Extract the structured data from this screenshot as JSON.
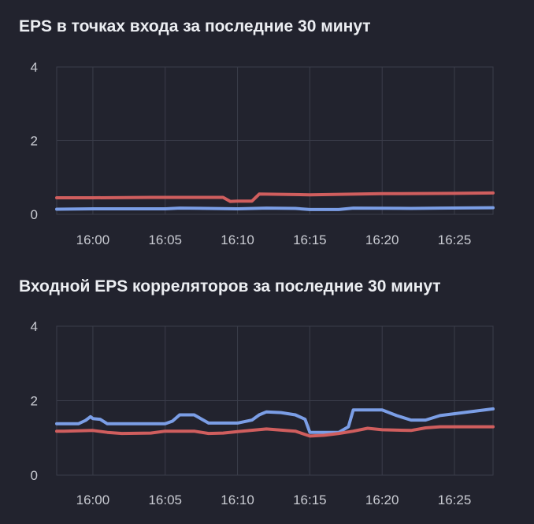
{
  "charts": [
    {
      "title": "EPS в точках входа за последние 30 минут",
      "chart_data": {
        "type": "line",
        "title": "EPS в точках входа за последние 30 минут",
        "xlabel": "",
        "ylabel": "",
        "x_tick_labels": [
          "16:00",
          "16:05",
          "16:10",
          "16:15",
          "16:20",
          "16:25"
        ],
        "y_ticks": [
          0,
          2,
          4
        ],
        "ylim": [
          0,
          4
        ],
        "xlim": [
          "15:57:30",
          "16:27:40"
        ],
        "grid": true,
        "series": [
          {
            "color": "#d05e5e",
            "x": [
              "15:57:30",
              "16:00",
              "16:04",
              "16:08",
              "16:09",
              "16:09:30",
              "16:10",
              "16:11",
              "16:11:30",
              "16:15",
              "16:20",
              "16:25",
              "16:27:40"
            ],
            "values": [
              0.45,
              0.45,
              0.46,
              0.46,
              0.46,
              0.35,
              0.36,
              0.36,
              0.55,
              0.53,
              0.56,
              0.57,
              0.58
            ]
          },
          {
            "color": "#7b9ee6",
            "x": [
              "15:57:30",
              "16:00",
              "16:05",
              "16:06",
              "16:10",
              "16:12",
              "16:14",
              "16:15",
              "16:17",
              "16:18",
              "16:22",
              "16:24",
              "16:27:40"
            ],
            "values": [
              0.14,
              0.15,
              0.15,
              0.17,
              0.15,
              0.17,
              0.16,
              0.13,
              0.13,
              0.17,
              0.16,
              0.17,
              0.18
            ]
          }
        ]
      }
    },
    {
      "title": "Входной EPS корреляторов за последние 30 минут",
      "chart_data": {
        "type": "line",
        "title": "Входной EPS корреляторов за последние 30 минут",
        "xlabel": "",
        "ylabel": "",
        "x_tick_labels": [
          "16:00",
          "16:05",
          "16:10",
          "16:15",
          "16:20",
          "16:25"
        ],
        "y_ticks": [
          0,
          2,
          4
        ],
        "ylim": [
          0,
          4
        ],
        "xlim": [
          "15:57:30",
          "16:27:40"
        ],
        "grid": true,
        "series": [
          {
            "color": "#7b9ee6",
            "x": [
              "15:57:30",
              "15:59",
              "15:59:30",
              "15:59:50",
              "16:00",
              "16:00:30",
              "16:01",
              "16:05",
              "16:05:30",
              "16:06",
              "16:07",
              "16:08",
              "16:10",
              "16:11",
              "16:11:30",
              "16:12",
              "16:13",
              "16:14",
              "16:14:40",
              "16:15",
              "16:16",
              "16:17",
              "16:17:40",
              "16:18",
              "16:20",
              "16:21",
              "16:22",
              "16:23",
              "16:24",
              "16:27:40"
            ],
            "values": [
              1.38,
              1.38,
              1.47,
              1.57,
              1.52,
              1.5,
              1.38,
              1.38,
              1.45,
              1.62,
              1.62,
              1.4,
              1.4,
              1.48,
              1.62,
              1.7,
              1.68,
              1.62,
              1.5,
              1.15,
              1.15,
              1.15,
              1.3,
              1.75,
              1.75,
              1.6,
              1.48,
              1.48,
              1.6,
              1.78
            ]
          },
          {
            "color": "#d05e5e",
            "x": [
              "15:57:30",
              "15:58",
              "16:00",
              "16:01",
              "16:02",
              "16:04",
              "16:05",
              "16:07",
              "16:08",
              "16:09",
              "16:10",
              "16:12",
              "16:14",
              "16:15",
              "16:16",
              "16:17",
              "16:18",
              "16:19",
              "16:20",
              "16:22",
              "16:23",
              "16:24",
              "16:27:40"
            ],
            "values": [
              1.18,
              1.18,
              1.2,
              1.15,
              1.12,
              1.13,
              1.18,
              1.18,
              1.12,
              1.13,
              1.17,
              1.24,
              1.18,
              1.05,
              1.07,
              1.12,
              1.18,
              1.26,
              1.22,
              1.2,
              1.27,
              1.3,
              1.3
            ]
          }
        ]
      }
    }
  ],
  "style": {
    "background": "#22232e",
    "grid_color": "#3b3d4a",
    "text_color": "#c9cbd2"
  }
}
